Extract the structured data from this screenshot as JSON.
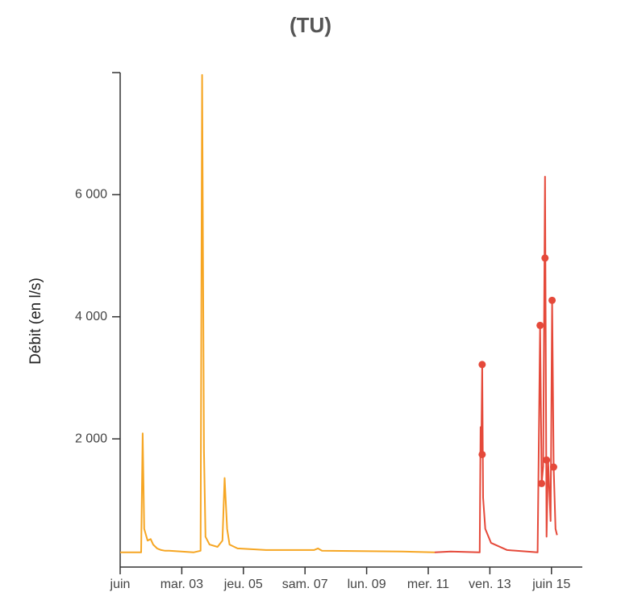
{
  "chart_data": {
    "type": "line",
    "title": "(TU)",
    "y_label": "Débit (en l/s)",
    "xlim": [
      1,
      16
    ],
    "ylim": [
      -100,
      8000
    ],
    "xticks": [
      {
        "value": 1,
        "label": "juin"
      },
      {
        "value": 3,
        "label": "mar. 03"
      },
      {
        "value": 5,
        "label": "jeu. 05"
      },
      {
        "value": 7,
        "label": "sam. 07"
      },
      {
        "value": 9,
        "label": "lun. 09"
      },
      {
        "value": 11,
        "label": "mer. 11"
      },
      {
        "value": 13,
        "label": "ven. 13"
      },
      {
        "value": 15,
        "label": "juin 15"
      }
    ],
    "yticks": [
      {
        "value": 2000,
        "label": "2 000"
      },
      {
        "value": 4000,
        "label": "4 000"
      },
      {
        "value": 6000,
        "label": "6 000"
      }
    ],
    "series": [
      {
        "color": "#f6a623",
        "mode": "lines",
        "x": [
          1.0,
          1.68,
          1.73,
          1.78,
          1.89,
          1.99,
          2.07,
          2.2,
          2.33,
          2.46,
          2.59,
          3.38,
          3.61,
          3.66,
          3.72,
          3.77,
          3.9,
          4.16,
          4.32,
          4.39,
          4.47,
          4.55,
          4.81,
          5.73,
          7.29,
          7.42,
          7.55,
          10.16,
          11.21
        ],
        "values": [
          141,
          141,
          2090,
          526,
          333,
          359,
          269,
          205,
          179,
          167,
          167,
          141,
          167,
          7962,
          1808,
          397,
          269,
          231,
          333,
          1359,
          526,
          269,
          205,
          179,
          179,
          205,
          167,
          154,
          141
        ]
      },
      {
        "color": "#e5493a",
        "mode": "lines",
        "x": [
          11.21,
          11.73,
          12.67,
          12.7,
          12.72,
          12.75,
          12.78,
          12.85,
          13.04,
          13.56,
          14.55,
          14.63,
          14.68,
          14.73,
          14.79,
          14.84,
          14.89,
          14.97,
          15.02,
          15.07,
          15.13,
          15.18
        ],
        "values": [
          141,
          154,
          141,
          2192,
          1744,
          3218,
          1038,
          526,
          295,
          179,
          141,
          3859,
          1269,
          1551,
          6295,
          397,
          1654,
          654,
          4269,
          1538,
          526,
          423
        ]
      },
      {
        "color": "#e5493a",
        "mode": "markers",
        "x": [
          12.75,
          12.75,
          14.63,
          14.68,
          14.79,
          14.84,
          15.02,
          15.07
        ],
        "values": [
          3218,
          1744,
          3859,
          1269,
          4962,
          1654,
          4269,
          1538
        ]
      }
    ]
  }
}
